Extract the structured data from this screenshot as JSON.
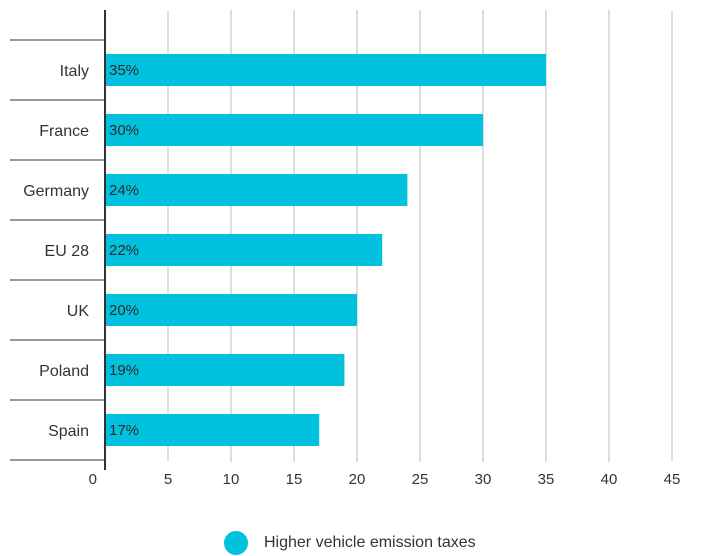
{
  "chart_data": {
    "type": "bar",
    "orientation": "horizontal",
    "categories": [
      "Italy",
      "France",
      "Germany",
      "EU 28",
      "UK",
      "Poland",
      "Spain"
    ],
    "series": [
      {
        "name": "Higher vehicle emission taxes",
        "values": [
          35,
          30,
          24,
          22,
          20,
          19,
          17
        ],
        "data_labels": [
          "35%",
          "30%",
          "24%",
          "22%",
          "20%",
          "19%",
          "17%"
        ]
      }
    ],
    "xlim": [
      0,
      50
    ],
    "xticks": [
      0,
      5,
      10,
      15,
      20,
      25,
      30,
      35,
      40,
      45,
      50
    ],
    "grid": "vertical",
    "legend": "bottom-center"
  },
  "colors": {
    "bar": "#00c1de",
    "grid": "#bdbdbd",
    "axis": "#333333",
    "text": "#333333"
  }
}
